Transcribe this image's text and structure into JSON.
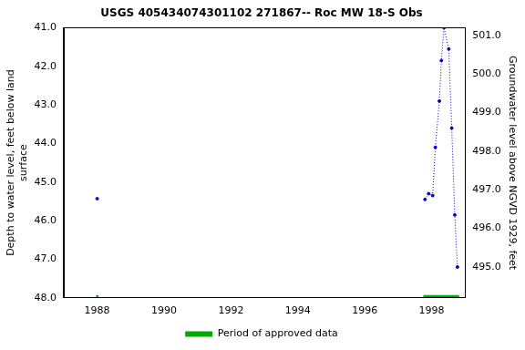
{
  "chart_data": {
    "type": "line",
    "title": "USGS 405434074301102 271867-- Roc MW 18-S Obs",
    "y_label": [
      "Depth to water level, feet below land",
      "surface"
    ],
    "y2_label": "Groundwater level above NGVD 1929, feet",
    "xlim": [
      1987,
      1999
    ],
    "xticks": [
      1988,
      1990,
      1992,
      1994,
      1996,
      1998
    ],
    "ylim": [
      48.0,
      41.0
    ],
    "yticks": [
      {
        "value": 41,
        "label": "41.0"
      },
      {
        "value": 42,
        "label": "42.0"
      },
      {
        "value": 43,
        "label": "43.0"
      },
      {
        "value": 44,
        "label": "44.0"
      },
      {
        "value": 45,
        "label": "45.0"
      },
      {
        "value": 46,
        "label": "46.0"
      },
      {
        "value": 47,
        "label": "47.0"
      },
      {
        "value": 48,
        "label": "48.0"
      }
    ],
    "y2lim": [
      494.2,
      501.2
    ],
    "y2ticks": [
      {
        "value": 495,
        "label": "495.0"
      },
      {
        "value": 496,
        "label": "496.0"
      },
      {
        "value": 497,
        "label": "497.0"
      },
      {
        "value": 498,
        "label": "498.0"
      },
      {
        "value": 499,
        "label": "499.0"
      },
      {
        "value": 500,
        "label": "500.0"
      },
      {
        "value": 501,
        "label": "501.0"
      }
    ],
    "grid": false,
    "legend": "bottom",
    "series": [
      {
        "color": "#0000cc",
        "line_style": "dotted",
        "marker": "circle",
        "x": [
          1988.0,
          1997.8,
          1997.8,
          1997.91,
          1998.03,
          1998.11,
          1998.23,
          1998.29,
          1998.37,
          1998.51,
          1998.6,
          1998.69,
          1998.77
        ],
        "values": [
          45.43,
          null,
          45.45,
          45.3,
          45.35,
          44.1,
          42.9,
          41.85,
          41.0,
          41.55,
          43.6,
          45.85,
          47.2
        ]
      },
      {
        "name": "Period of approved data",
        "color": "#00aa00",
        "periods": [
          [
            1987.97,
            1988.04
          ],
          [
            1997.75,
            1998.82
          ]
        ]
      }
    ]
  }
}
